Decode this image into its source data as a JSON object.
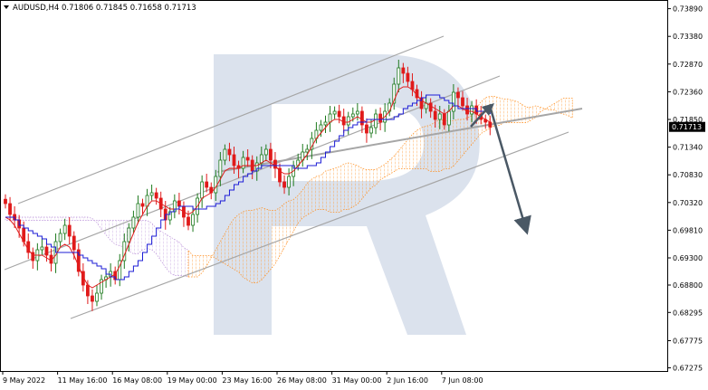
{
  "header": {
    "symbol": "AUDUSD,H4",
    "ohlc": "0.71806 0.71845 0.71658 0.71713"
  },
  "watermark": {
    "icon": "roboforex-r-logo-icon",
    "color": "#d4dcea"
  },
  "colors": {
    "candle_bull": "#1e7a1e",
    "candle_bear": "#e01a1a",
    "tenkan": "#e11d1d",
    "kijun": "#1c1cd6",
    "cloud_bull": "#ff8c1a",
    "cloud_bear": "#b98fd8",
    "channel": "#a6a6a6",
    "forecast_arrow": "#4a5865",
    "price_badge": "#000000"
  },
  "chart_data": {
    "type": "candlestick",
    "indicators": [
      "Ichimoku Kinko Hyo"
    ],
    "ylim": [
      0.6725,
      0.739
    ],
    "y_ticks": [
      "0.73890",
      "0.73380",
      "0.72870",
      "0.72360",
      "0.71850",
      "0.71340",
      "0.70830",
      "0.70320",
      "0.69810",
      "0.69300",
      "0.68800",
      "0.68295",
      "0.67775",
      "0.67275"
    ],
    "x_ticks": [
      "9 May 2022",
      "11 May 16:00",
      "16 May 08:00",
      "19 May 00:00",
      "23 May 16:00",
      "26 May 08:00",
      "31 May 00:00",
      "2 Jun 16:00",
      "7 Jun 08:00"
    ],
    "current_price": "0.71713",
    "grid": false,
    "candles_close": [
      0.703,
      0.701,
      0.7,
      0.6985,
      0.696,
      0.694,
      0.6925,
      0.6945,
      0.695,
      0.6935,
      0.692,
      0.696,
      0.6975,
      0.699,
      0.697,
      0.6945,
      0.6905,
      0.688,
      0.686,
      0.685,
      0.6865,
      0.689,
      0.6895,
      0.6905,
      0.689,
      0.6925,
      0.696,
      0.6985,
      0.7005,
      0.703,
      0.7025,
      0.7045,
      0.705,
      0.704,
      0.702,
      0.7,
      0.7015,
      0.7035,
      0.7025,
      0.7005,
      0.699,
      0.701,
      0.704,
      0.707,
      0.706,
      0.705,
      0.708,
      0.711,
      0.713,
      0.712,
      0.71,
      0.7095,
      0.7115,
      0.711,
      0.709,
      0.7105,
      0.712,
      0.713,
      0.711,
      0.7095,
      0.707,
      0.706,
      0.708,
      0.71,
      0.711,
      0.7125,
      0.713,
      0.715,
      0.7165,
      0.7175,
      0.718,
      0.7195,
      0.72,
      0.719,
      0.7175,
      0.719,
      0.7195,
      0.72,
      0.7175,
      0.716,
      0.717,
      0.7195,
      0.718,
      0.72,
      0.7215,
      0.725,
      0.728,
      0.727,
      0.7255,
      0.724,
      0.7225,
      0.7205,
      0.7215,
      0.72,
      0.7185,
      0.7195,
      0.7175,
      0.72,
      0.7235,
      0.7225,
      0.721,
      0.7195,
      0.721,
      0.7195,
      0.7185,
      0.718,
      0.7171
    ],
    "tenkan_sen": [
      0.7005,
      0.7,
      0.699,
      0.6975,
      0.696,
      0.6945,
      0.6935,
      0.6935,
      0.6935,
      0.693,
      0.6925,
      0.6935,
      0.695,
      0.6955,
      0.695,
      0.6935,
      0.6915,
      0.6895,
      0.688,
      0.6875,
      0.688,
      0.6885,
      0.689,
      0.6895,
      0.69,
      0.6915,
      0.6935,
      0.6955,
      0.6975,
      0.6995,
      0.701,
      0.7025,
      0.7035,
      0.7035,
      0.703,
      0.7025,
      0.702,
      0.702,
      0.702,
      0.7015,
      0.701,
      0.7015,
      0.7025,
      0.704,
      0.7045,
      0.705,
      0.706,
      0.7075,
      0.709,
      0.7095,
      0.7095,
      0.7095,
      0.71,
      0.71,
      0.71,
      0.71,
      0.7105,
      0.711,
      0.7105,
      0.71,
      0.709,
      0.7085,
      0.7085,
      0.709,
      0.71,
      0.711,
      0.712,
      0.7135,
      0.715,
      0.716,
      0.717,
      0.718,
      0.7185,
      0.7185,
      0.718,
      0.718,
      0.7185,
      0.719,
      0.7185,
      0.718,
      0.718,
      0.7185,
      0.7185,
      0.719,
      0.72,
      0.722,
      0.724,
      0.7245,
      0.7245,
      0.724,
      0.723,
      0.722,
      0.7215,
      0.721,
      0.7205,
      0.72,
      0.7195,
      0.72,
      0.721,
      0.721,
      0.7205,
      0.72,
      0.72,
      0.7195,
      0.719,
      0.7185,
      0.718
    ]
  }
}
